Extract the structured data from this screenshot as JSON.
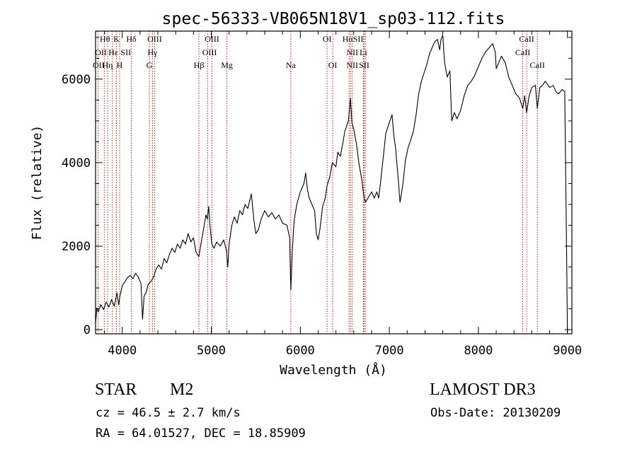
{
  "chart_data": {
    "type": "line",
    "title": "spec-56333-VB065N18V1_sp03-112.fits",
    "xlabel": "Wavelength (Å)",
    "ylabel": "Flux (relative)",
    "xlim": [
      3700,
      9050
    ],
    "ylim": [
      -100,
      7150
    ],
    "x_ticks": [
      4000,
      5000,
      6000,
      7000,
      8000,
      9000
    ],
    "y_ticks": [
      0,
      2000,
      4000,
      6000
    ],
    "x_tick_labels": [
      "4000",
      "5000",
      "6000",
      "7000",
      "8000",
      "9000"
    ],
    "y_tick_labels": [
      "0",
      "2000",
      "4000",
      "6000"
    ],
    "series": [
      {
        "name": "flux",
        "points": [
          [
            3700,
            150
          ],
          [
            3715,
            520
          ],
          [
            3730,
            420
          ],
          [
            3760,
            600
          ],
          [
            3790,
            480
          ],
          [
            3820,
            660
          ],
          [
            3850,
            540
          ],
          [
            3880,
            720
          ],
          [
            3910,
            560
          ],
          [
            3940,
            880
          ],
          [
            3960,
            600
          ],
          [
            3975,
            820
          ],
          [
            4000,
            1050
          ],
          [
            4030,
            1150
          ],
          [
            4060,
            1250
          ],
          [
            4090,
            1300
          ],
          [
            4120,
            1220
          ],
          [
            4150,
            1350
          ],
          [
            4180,
            1260
          ],
          [
            4210,
            1100
          ],
          [
            4228,
            250
          ],
          [
            4245,
            800
          ],
          [
            4270,
            900
          ],
          [
            4290,
            1080
          ],
          [
            4320,
            1150
          ],
          [
            4350,
            1250
          ],
          [
            4380,
            1450
          ],
          [
            4410,
            1550
          ],
          [
            4440,
            1450
          ],
          [
            4470,
            1700
          ],
          [
            4500,
            1600
          ],
          [
            4530,
            1800
          ],
          [
            4560,
            1950
          ],
          [
            4590,
            1850
          ],
          [
            4620,
            2050
          ],
          [
            4650,
            1950
          ],
          [
            4680,
            2150
          ],
          [
            4710,
            2050
          ],
          [
            4740,
            2300
          ],
          [
            4770,
            2100
          ],
          [
            4800,
            2200
          ],
          [
            4830,
            1850
          ],
          [
            4861,
            1750
          ],
          [
            4880,
            2000
          ],
          [
            4900,
            2250
          ],
          [
            4920,
            2500
          ],
          [
            4940,
            2750
          ],
          [
            4955,
            2650
          ],
          [
            4970,
            2950
          ],
          [
            4985,
            2500
          ],
          [
            5007,
            2050
          ],
          [
            5030,
            1950
          ],
          [
            5060,
            2100
          ],
          [
            5100,
            2000
          ],
          [
            5140,
            2150
          ],
          [
            5170,
            1900
          ],
          [
            5185,
            1500
          ],
          [
            5200,
            2050
          ],
          [
            5230,
            2500
          ],
          [
            5260,
            2700
          ],
          [
            5290,
            2550
          ],
          [
            5320,
            2850
          ],
          [
            5350,
            2750
          ],
          [
            5380,
            3000
          ],
          [
            5410,
            2900
          ],
          [
            5450,
            3250
          ],
          [
            5480,
            2600
          ],
          [
            5500,
            2300
          ],
          [
            5530,
            2400
          ],
          [
            5560,
            2650
          ],
          [
            5600,
            2850
          ],
          [
            5640,
            2700
          ],
          [
            5680,
            2800
          ],
          [
            5720,
            2650
          ],
          [
            5760,
            2750
          ],
          [
            5800,
            2550
          ],
          [
            5850,
            2500
          ],
          [
            5880,
            2200
          ],
          [
            5893,
            950
          ],
          [
            5910,
            1900
          ],
          [
            5930,
            2600
          ],
          [
            5960,
            3000
          ],
          [
            6000,
            3300
          ],
          [
            6040,
            3500
          ],
          [
            6060,
            3750
          ],
          [
            6080,
            3350
          ],
          [
            6100,
            3150
          ],
          [
            6130,
            3000
          ],
          [
            6160,
            2850
          ],
          [
            6180,
            2300
          ],
          [
            6200,
            2150
          ],
          [
            6220,
            2400
          ],
          [
            6250,
            2950
          ],
          [
            6280,
            3150
          ],
          [
            6300,
            3450
          ],
          [
            6330,
            3650
          ],
          [
            6360,
            4000
          ],
          [
            6400,
            3900
          ],
          [
            6420,
            4250
          ],
          [
            6450,
            4150
          ],
          [
            6480,
            4500
          ],
          [
            6500,
            4750
          ],
          [
            6540,
            5000
          ],
          [
            6563,
            5550
          ],
          [
            6580,
            4950
          ],
          [
            6600,
            4800
          ],
          [
            6630,
            4450
          ],
          [
            6660,
            3950
          ],
          [
            6690,
            3600
          ],
          [
            6710,
            3250
          ],
          [
            6730,
            3050
          ],
          [
            6760,
            3150
          ],
          [
            6800,
            3300
          ],
          [
            6830,
            3150
          ],
          [
            6860,
            3300
          ],
          [
            6880,
            3150
          ],
          [
            6900,
            3500
          ],
          [
            6930,
            4100
          ],
          [
            6960,
            4700
          ],
          [
            6990,
            4900
          ],
          [
            7030,
            5150
          ],
          [
            7050,
            4650
          ],
          [
            7070,
            4350
          ],
          [
            7100,
            3600
          ],
          [
            7120,
            3050
          ],
          [
            7150,
            3450
          ],
          [
            7180,
            4050
          ],
          [
            7210,
            4350
          ],
          [
            7240,
            4550
          ],
          [
            7270,
            4750
          ],
          [
            7300,
            5150
          ],
          [
            7330,
            5650
          ],
          [
            7360,
            5950
          ],
          [
            7390,
            6150
          ],
          [
            7420,
            6350
          ],
          [
            7450,
            6600
          ],
          [
            7480,
            6750
          ],
          [
            7510,
            6900
          ],
          [
            7540,
            6950
          ],
          [
            7565,
            6700
          ],
          [
            7580,
            6950
          ],
          [
            7600,
            7050
          ],
          [
            7620,
            6400
          ],
          [
            7650,
            6050
          ],
          [
            7680,
            6200
          ],
          [
            7700,
            5000
          ],
          [
            7730,
            5200
          ],
          [
            7760,
            5050
          ],
          [
            7800,
            5250
          ],
          [
            7840,
            5600
          ],
          [
            7880,
            5850
          ],
          [
            7920,
            5950
          ],
          [
            7960,
            6100
          ],
          [
            8000,
            6300
          ],
          [
            8040,
            6500
          ],
          [
            8080,
            6650
          ],
          [
            8120,
            6750
          ],
          [
            8160,
            6850
          ],
          [
            8190,
            6650
          ],
          [
            8200,
            6250
          ],
          [
            8230,
            6400
          ],
          [
            8260,
            6550
          ],
          [
            8300,
            6400
          ],
          [
            8340,
            6050
          ],
          [
            8380,
            5850
          ],
          [
            8420,
            5650
          ],
          [
            8460,
            5550
          ],
          [
            8498,
            5300
          ],
          [
            8520,
            5600
          ],
          [
            8542,
            5200
          ],
          [
            8570,
            5600
          ],
          [
            8600,
            5800
          ],
          [
            8640,
            5850
          ],
          [
            8662,
            5300
          ],
          [
            8690,
            5800
          ],
          [
            8720,
            5850
          ],
          [
            8750,
            5950
          ],
          [
            8800,
            5800
          ],
          [
            8840,
            5850
          ],
          [
            8870,
            5700
          ],
          [
            8900,
            5650
          ],
          [
            8940,
            5750
          ],
          [
            8970,
            5700
          ],
          [
            8990,
            1900
          ],
          [
            9000,
            -80
          ]
        ]
      }
    ],
    "lines": [
      {
        "x": 3727,
        "labels": [
          "",
          "OII"
        ]
      },
      {
        "x": 3798,
        "labels": [
          "",
          "OII"
        ]
      },
      {
        "x": 3835,
        "labels": [],
        "row0_col": "Hθ"
      },
      {
        "x": 3889,
        "labels": []
      },
      {
        "x": 3934,
        "labels": []
      },
      {
        "x": 3970,
        "labels": []
      },
      {
        "x": 4102,
        "labels": []
      },
      {
        "x": 4304,
        "labels": []
      },
      {
        "x": 4340,
        "labels": []
      },
      {
        "x": 4363,
        "labels": []
      },
      {
        "x": 4861,
        "labels": []
      },
      {
        "x": 4959,
        "labels": []
      },
      {
        "x": 5007,
        "labels": []
      },
      {
        "x": 5175,
        "labels": []
      },
      {
        "x": 5893,
        "labels": []
      },
      {
        "x": 6300,
        "labels": []
      },
      {
        "x": 6364,
        "labels": []
      },
      {
        "x": 6548,
        "labels": []
      },
      {
        "x": 6563,
        "labels": []
      },
      {
        "x": 6583,
        "labels": []
      },
      {
        "x": 6708,
        "labels": []
      },
      {
        "x": 6717,
        "labels": []
      },
      {
        "x": 6731,
        "labels": []
      },
      {
        "x": 8498,
        "labels": []
      },
      {
        "x": 8542,
        "labels": []
      },
      {
        "x": 8662,
        "labels": []
      }
    ],
    "line_labels": [
      {
        "text": "Hθ",
        "x": 3805,
        "row": 0
      },
      {
        "text": "K",
        "x": 3934,
        "row": 0
      },
      {
        "text": "Hδ",
        "x": 4102,
        "row": 0
      },
      {
        "text": "OIII",
        "x": 4363,
        "row": 0
      },
      {
        "text": "OIII",
        "x": 5007,
        "row": 0
      },
      {
        "text": "OI",
        "x": 6300,
        "row": 0
      },
      {
        "text": "HαSII",
        "x": 6590,
        "row": 0
      },
      {
        "text": "CaII",
        "x": 8542,
        "row": 0
      },
      {
        "text": "OII",
        "x": 3760,
        "row": 1
      },
      {
        "text": "Hε",
        "x": 3900,
        "row": 1
      },
      {
        "text": "SII",
        "x": 4040,
        "row": 1
      },
      {
        "text": "Hγ",
        "x": 4340,
        "row": 1
      },
      {
        "text": "OIII",
        "x": 4980,
        "row": 1
      },
      {
        "text": "NII",
        "x": 6583,
        "row": 1
      },
      {
        "text": "Li",
        "x": 6708,
        "row": 1
      },
      {
        "text": "CaII",
        "x": 8498,
        "row": 1
      },
      {
        "text": "OII",
        "x": 3735,
        "row": 2
      },
      {
        "text": "Hη",
        "x": 3835,
        "row": 2
      },
      {
        "text": "H",
        "x": 3970,
        "row": 2
      },
      {
        "text": "G",
        "x": 4304,
        "row": 2
      },
      {
        "text": "Hβ",
        "x": 4861,
        "row": 2
      },
      {
        "text": "Mg",
        "x": 5175,
        "row": 2
      },
      {
        "text": "Na",
        "x": 5893,
        "row": 2
      },
      {
        "text": "OI",
        "x": 6364,
        "row": 2
      },
      {
        "text": "NII",
        "x": 6583,
        "row": 2
      },
      {
        "text": "SII",
        "x": 6717,
        "row": 2
      },
      {
        "text": "CaII",
        "x": 8662,
        "row": 2
      }
    ],
    "line_color": "#cc0000"
  },
  "info": {
    "class": "STAR",
    "subclass": "M2",
    "survey": "LAMOST DR3",
    "cz": "cz = 46.5 ± 2.7 km/s",
    "obs_date": "Obs-Date: 20130209",
    "coords": "RA =  64.01527, DEC =  18.85909"
  }
}
